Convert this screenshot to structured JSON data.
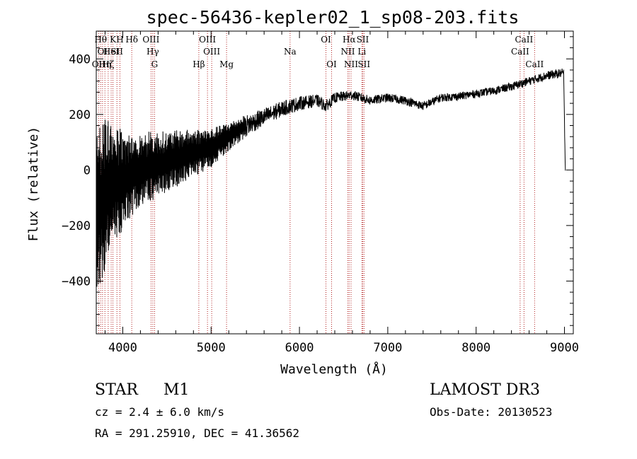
{
  "chart_data": {
    "type": "line",
    "title": "spec-56436-kepler02_1_sp08-203.fits",
    "xlabel": "Wavelength (Å)",
    "ylabel": "Flux (relative)",
    "xlim": [
      3700,
      9100
    ],
    "ylim": [
      -590,
      500
    ],
    "xticks": [
      4000,
      5000,
      6000,
      7000,
      8000,
      9000
    ],
    "yticks": [
      -400,
      -200,
      0,
      200,
      400
    ],
    "xtick_labels": [
      "4000",
      "5000",
      "6000",
      "7000",
      "8000",
      "9000"
    ],
    "ytick_labels": [
      "−400",
      "−200",
      "0",
      "200",
      "400"
    ],
    "grid": false,
    "series": [
      {
        "name": "flux",
        "anchors": [
          [
            3700,
            -150
          ],
          [
            3800,
            -80
          ],
          [
            3900,
            -50
          ],
          [
            4000,
            -40
          ],
          [
            4100,
            -20
          ],
          [
            4200,
            0
          ],
          [
            4400,
            20
          ],
          [
            4600,
            40
          ],
          [
            4800,
            60
          ],
          [
            5000,
            80
          ],
          [
            5200,
            120
          ],
          [
            5400,
            160
          ],
          [
            5600,
            190
          ],
          [
            5800,
            220
          ],
          [
            6000,
            240
          ],
          [
            6200,
            250
          ],
          [
            6300,
            230
          ],
          [
            6400,
            260
          ],
          [
            6600,
            270
          ],
          [
            6800,
            250
          ],
          [
            7000,
            260
          ],
          [
            7200,
            250
          ],
          [
            7400,
            230
          ],
          [
            7600,
            260
          ],
          [
            7800,
            265
          ],
          [
            8000,
            275
          ],
          [
            8200,
            285
          ],
          [
            8400,
            300
          ],
          [
            8600,
            320
          ],
          [
            8800,
            340
          ],
          [
            8990,
            350
          ],
          [
            9010,
            0
          ]
        ],
        "noise_anchors": [
          [
            3700,
            300
          ],
          [
            3800,
            280
          ],
          [
            3900,
            220
          ],
          [
            4000,
            180
          ],
          [
            4100,
            150
          ],
          [
            4300,
            130
          ],
          [
            4500,
            110
          ],
          [
            4700,
            95
          ],
          [
            4900,
            80
          ],
          [
            5100,
            60
          ],
          [
            5300,
            45
          ],
          [
            5500,
            35
          ],
          [
            5700,
            30
          ],
          [
            6000,
            25
          ],
          [
            6500,
            18
          ],
          [
            7000,
            16
          ],
          [
            8000,
            14
          ],
          [
            9000,
            16
          ]
        ]
      }
    ],
    "lines": [
      {
        "wave": 3727,
        "label": "OII",
        "row": 3
      },
      {
        "wave": 3750,
        "label": "Hθ",
        "row": 1
      },
      {
        "wave": 3771,
        "label": "OI",
        "row": 2
      },
      {
        "wave": 3798,
        "label": "Hη",
        "row": 3
      },
      {
        "wave": 3835,
        "label": "Hζ",
        "row": 3
      },
      {
        "wave": 3869,
        "label": "HeI",
        "row": 2
      },
      {
        "wave": 3889,
        "label": "K",
        "row": 1
      },
      {
        "wave": 3934,
        "label": "SII",
        "row": 2
      },
      {
        "wave": 3968,
        "label": "H",
        "row": 1
      },
      {
        "wave": 4102,
        "label": "Hδ",
        "row": 1
      },
      {
        "wave": 4320,
        "label": "OIII",
        "row": 1
      },
      {
        "wave": 4340,
        "label": "Hγ",
        "row": 2
      },
      {
        "wave": 4360,
        "label": "G",
        "row": 3
      },
      {
        "wave": 4861,
        "label": "Hβ",
        "row": 3
      },
      {
        "wave": 4959,
        "label": "OIII",
        "row": 1
      },
      {
        "wave": 5007,
        "label": "OIII",
        "row": 2
      },
      {
        "wave": 5175,
        "label": "Mg",
        "row": 3
      },
      {
        "wave": 5894,
        "label": "Na",
        "row": 2
      },
      {
        "wave": 6300,
        "label": "OI",
        "row": 1
      },
      {
        "wave": 6364,
        "label": "OI",
        "row": 3
      },
      {
        "wave": 6548,
        "label": "NII",
        "row": 2
      },
      {
        "wave": 6563,
        "label": "Hα",
        "row": 1
      },
      {
        "wave": 6584,
        "label": "NII",
        "row": 3
      },
      {
        "wave": 6707,
        "label": "Li",
        "row": 2
      },
      {
        "wave": 6716,
        "label": "SII",
        "row": 1
      },
      {
        "wave": 6731,
        "label": "SII",
        "row": 3
      },
      {
        "wave": 8498,
        "label": "CaII",
        "row": 2
      },
      {
        "wave": 8542,
        "label": "CaII",
        "row": 1
      },
      {
        "wave": 8662,
        "label": "CaII",
        "row": 3
      }
    ],
    "colors": {
      "curve": "#000000",
      "lines": "#b22222",
      "axes": "#000000"
    }
  },
  "info": {
    "type": "STAR",
    "subclass": "M1",
    "cz": "cz = 2.4 ± 6.0 km/s",
    "coords": "RA = 291.25910, DEC =  41.36562",
    "survey": "LAMOST DR3",
    "obs_date": "Obs-Date: 20130523"
  }
}
